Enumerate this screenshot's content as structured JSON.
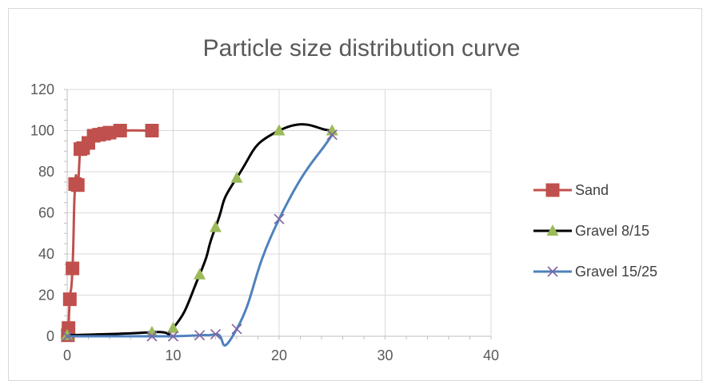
{
  "chart_data": {
    "type": "scatter",
    "title": "Particle size distribution curve",
    "xlabel": "",
    "ylabel": "",
    "xlim": [
      0,
      40
    ],
    "ylim": [
      0,
      120
    ],
    "x_ticks": [
      0,
      10,
      20,
      30,
      40
    ],
    "y_ticks": [
      0,
      20,
      40,
      60,
      80,
      100,
      120
    ],
    "grid": true,
    "smooth_lines": true,
    "legend_position": "right",
    "series": [
      {
        "name": "Sand",
        "color": "#C0504D",
        "marker": "square",
        "points": [
          [
            0.063,
            0.5
          ],
          [
            0.125,
            4
          ],
          [
            0.25,
            18
          ],
          [
            0.5,
            33
          ],
          [
            0.75,
            74
          ],
          [
            1,
            73.5
          ],
          [
            1.25,
            91
          ],
          [
            1.5,
            91.5
          ],
          [
            2,
            94
          ],
          [
            2.5,
            97.5
          ],
          [
            3,
            98
          ],
          [
            3.5,
            98.5
          ],
          [
            4,
            99
          ],
          [
            5,
            100
          ],
          [
            8,
            100
          ]
        ]
      },
      {
        "name": "Gravel 8/15",
        "color": "#000000",
        "marker_color": "#9BBB59",
        "marker": "triangle",
        "points": [
          [
            0,
            0.5
          ],
          [
            8,
            2
          ],
          [
            10,
            4
          ],
          [
            12.5,
            30
          ],
          [
            14,
            53
          ],
          [
            16,
            77
          ],
          [
            20,
            100
          ],
          [
            25,
            100
          ]
        ]
      },
      {
        "name": "Gravel 15/25",
        "color": "#4F81BD",
        "marker_color": "#8064A2",
        "marker": "x",
        "points": [
          [
            0,
            0
          ],
          [
            8,
            0
          ],
          [
            10,
            0
          ],
          [
            12.5,
            0.5
          ],
          [
            14,
            1
          ],
          [
            16,
            3.5
          ],
          [
            20,
            57
          ],
          [
            25,
            98
          ]
        ]
      }
    ]
  }
}
